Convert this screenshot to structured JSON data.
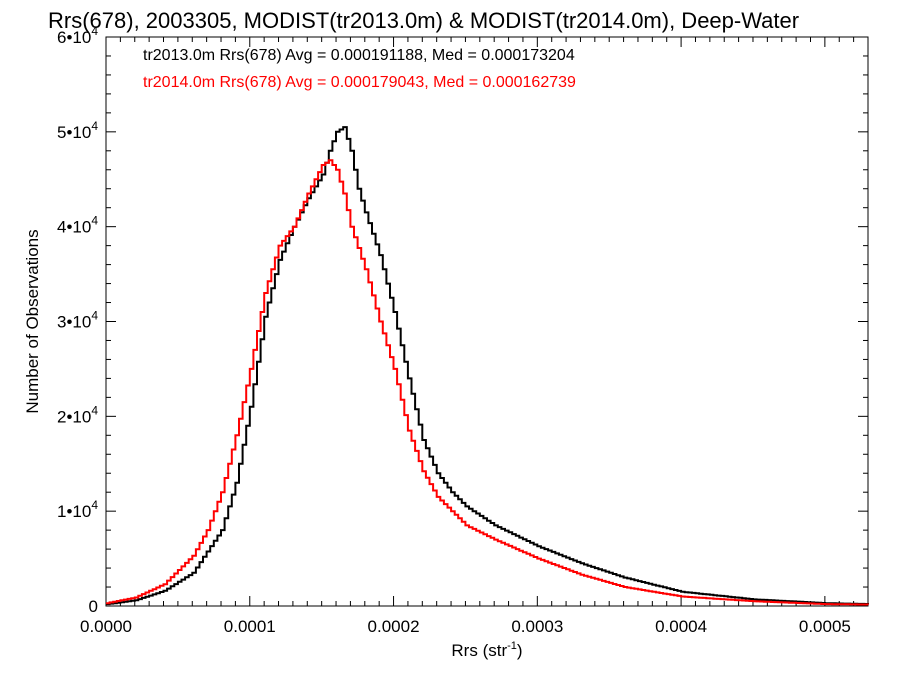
{
  "chart_data": {
    "type": "line",
    "title": "Rrs(678), 2003305, MODIST(tr2013.0m) & MODIST(tr2014.0m), Deep-Water",
    "xlabel": {
      "base": "Rrs (str",
      "sup": "-1",
      "close": ")"
    },
    "ylabel": "Number of Observations",
    "xlim": [
      0.0,
      0.00053
    ],
    "ylim": [
      0,
      60000
    ],
    "x_ticks": [
      {
        "value": 0.0,
        "label": "0.0000"
      },
      {
        "value": 0.0001,
        "label": "0.0001"
      },
      {
        "value": 0.0002,
        "label": "0.0002"
      },
      {
        "value": 0.0003,
        "label": "0.0003"
      },
      {
        "value": 0.0004,
        "label": "0.0004"
      },
      {
        "value": 0.0005,
        "label": "0.0005"
      }
    ],
    "y_ticks": [
      {
        "value": 0,
        "mantissa": "0",
        "exp": ""
      },
      {
        "value": 10000,
        "mantissa": "1•10",
        "exp": "4"
      },
      {
        "value": 20000,
        "mantissa": "2•10",
        "exp": "4"
      },
      {
        "value": 30000,
        "mantissa": "3•10",
        "exp": "4"
      },
      {
        "value": 40000,
        "mantissa": "4•10",
        "exp": "4"
      },
      {
        "value": 50000,
        "mantissa": "5•10",
        "exp": "4"
      },
      {
        "value": 60000,
        "mantissa": "6•10",
        "exp": "4"
      }
    ],
    "legend_placement": "top-left",
    "series": [
      {
        "legend": "tr2013.0m Rrs(678) Avg = 0.000191188, Med = 0.000173204",
        "color": "#000000",
        "x": [
          0.0,
          2e-05,
          4e-05,
          6e-05,
          8e-05,
          9e-05,
          0.0001,
          0.00011,
          0.00012,
          0.00013,
          0.00014,
          0.00015,
          0.000155,
          0.00016,
          0.000165,
          0.00017,
          0.000175,
          0.00018,
          0.00019,
          0.0002,
          0.00021,
          0.00022,
          0.00023,
          0.00024,
          0.00025,
          0.00027,
          0.0003,
          0.00033,
          0.00036,
          0.0004,
          0.00045,
          0.0005,
          0.00053
        ],
        "values": [
          200,
          600,
          1600,
          3500,
          8000,
          13000,
          21000,
          30500,
          36500,
          40000,
          43000,
          45500,
          48000,
          50000,
          50500,
          48000,
          44000,
          41500,
          37000,
          31000,
          24000,
          17500,
          14000,
          12000,
          10500,
          8500,
          6300,
          4500,
          3000,
          1500,
          700,
          300,
          200
        ]
      },
      {
        "legend": "tr2014.0m Rrs(678) Avg = 0.000179043, Med = 0.000162739",
        "color": "#ff0000",
        "x": [
          0.0,
          2e-05,
          4e-05,
          6e-05,
          7e-05,
          8e-05,
          9e-05,
          0.0001,
          0.00011,
          0.00012,
          0.00013,
          0.00014,
          0.00015,
          0.000155,
          0.00016,
          0.000165,
          0.00017,
          0.00018,
          0.00019,
          0.0002,
          0.00021,
          0.00022,
          0.00023,
          0.00024,
          0.00025,
          0.00027,
          0.0003,
          0.00033,
          0.00036,
          0.0004,
          0.00045,
          0.0005,
          0.00053
        ],
        "values": [
          300,
          900,
          2300,
          5300,
          8000,
          12000,
          18000,
          25000,
          33000,
          38000,
          40000,
          43500,
          46500,
          47000,
          46000,
          43500,
          40000,
          35500,
          30000,
          25000,
          18500,
          14200,
          11500,
          10000,
          8500,
          7000,
          5000,
          3300,
          2000,
          1000,
          500,
          200,
          150
        ]
      }
    ]
  }
}
